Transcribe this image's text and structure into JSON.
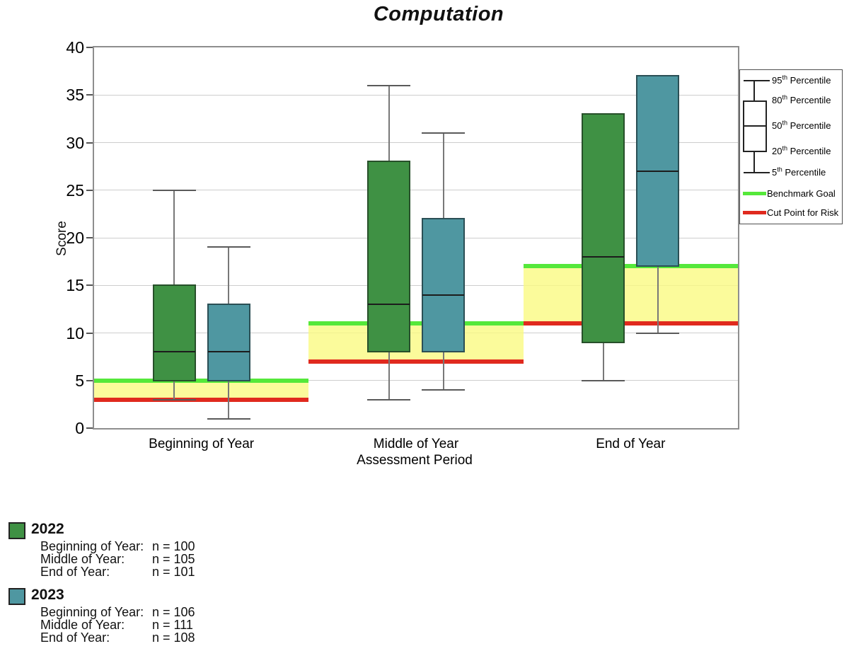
{
  "title": "Computation",
  "axes": {
    "y_label": "Score",
    "x_label": "Assessment Period",
    "y_ticks": [
      0,
      5,
      10,
      15,
      20,
      25,
      30,
      35,
      40
    ]
  },
  "chart_data": {
    "type": "boxplot",
    "title": "Computation",
    "xlabel": "Assessment Period",
    "ylabel": "Score",
    "ylim": [
      0,
      40
    ],
    "grid_step": 5,
    "grid": true,
    "categories": [
      "Beginning of Year",
      "Middle of Year",
      "End of Year"
    ],
    "series": [
      {
        "name": "2022",
        "color": "#3F9144",
        "border_color": "#27502A",
        "boxes": [
          {
            "category": "Beginning of Year",
            "p5": 3,
            "p20": 5,
            "p50": 8,
            "p80": 15,
            "p95": 25
          },
          {
            "category": "Middle of Year",
            "p5": 3,
            "p20": 8,
            "p50": 13,
            "p80": 28,
            "p95": 36
          },
          {
            "category": "End of Year",
            "p5": 5,
            "p20": 9,
            "p50": 18,
            "p80": 33,
            "p95": 33
          }
        ]
      },
      {
        "name": "2023",
        "color": "#4F97A1",
        "border_color": "#2B4F55",
        "boxes": [
          {
            "category": "Beginning of Year",
            "p5": 1,
            "p20": 5,
            "p50": 8,
            "p80": 13,
            "p95": 19
          },
          {
            "category": "Middle of Year",
            "p5": 4,
            "p20": 8,
            "p50": 14,
            "p80": 22,
            "p95": 31
          },
          {
            "category": "End of Year",
            "p5": 10,
            "p20": 17,
            "p50": 27,
            "p80": 37,
            "p95": 37
          }
        ]
      }
    ],
    "benchmarks": [
      {
        "category": "Beginning of Year",
        "benchmark_goal": 5,
        "cut_point_for_risk": 3
      },
      {
        "category": "Middle of Year",
        "benchmark_goal": 11,
        "cut_point_for_risk": 7
      },
      {
        "category": "End of Year",
        "benchmark_goal": 17,
        "cut_point_for_risk": 11
      }
    ],
    "colors": {
      "benchmark_goal": "#55E83A",
      "cut_point": "#E02A1E",
      "band": "#FAFA9D"
    },
    "legend_position": "top-right"
  },
  "legend": {
    "percentiles": [
      {
        "num": "95",
        "sup": "th",
        "rest": "Percentile"
      },
      {
        "num": "80",
        "sup": "th",
        "rest": "Percentile"
      },
      {
        "num": "50",
        "sup": "th",
        "rest": "Percentile"
      },
      {
        "num": "20",
        "sup": "th",
        "rest": "Percentile"
      },
      {
        "num": "5",
        "sup": "th",
        "rest": "Percentile"
      }
    ],
    "goal_label": "Benchmark Goal",
    "cut_label": "Cut Point for Risk"
  },
  "footer": {
    "groups": [
      {
        "year": "2022",
        "color": "#3F9144",
        "rows": [
          {
            "label": "Beginning of Year:",
            "value": "n = 100"
          },
          {
            "label": "Middle of Year:",
            "value": "n = 105"
          },
          {
            "label": "End of Year:",
            "value": "n = 101"
          }
        ]
      },
      {
        "year": "2023",
        "color": "#4F97A1",
        "rows": [
          {
            "label": "Beginning of Year:",
            "value": "n = 106"
          },
          {
            "label": "Middle of Year:",
            "value": "n = 111"
          },
          {
            "label": "End of Year:",
            "value": "n = 108"
          }
        ]
      }
    ]
  }
}
